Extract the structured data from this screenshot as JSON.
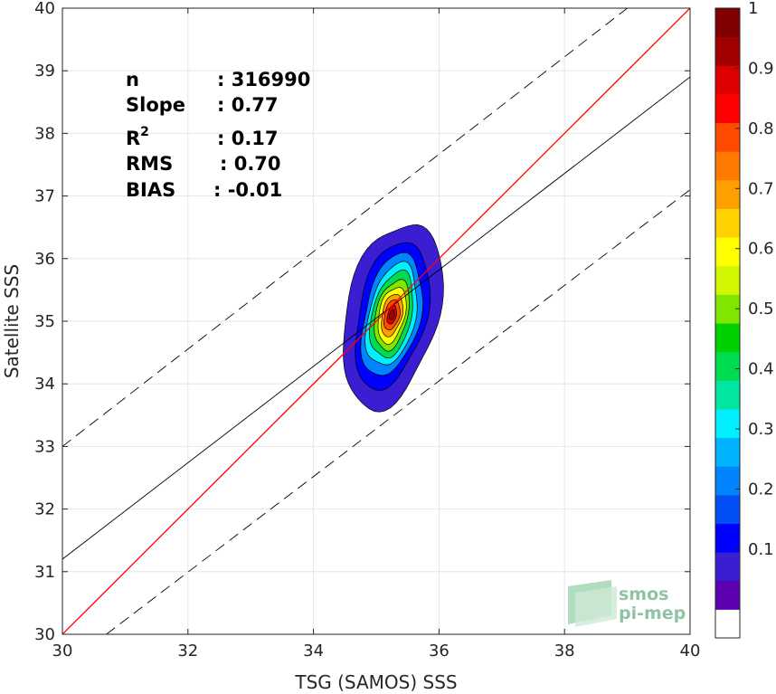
{
  "chart_data": {
    "type": "heatmap",
    "subtype": "density-contour scatter",
    "xlabel": "TSG (SAMOS) SSS",
    "ylabel": "Satellite SSS",
    "xlim": [
      30,
      40
    ],
    "ylim": [
      30,
      40
    ],
    "x_ticks": [
      "30",
      "32",
      "34",
      "36",
      "38",
      "40"
    ],
    "y_ticks": [
      "30",
      "31",
      "32",
      "33",
      "34",
      "35",
      "36",
      "37",
      "38",
      "39",
      "40"
    ],
    "grid": true,
    "stats": [
      {
        "key": "n",
        "value": ": 316990"
      },
      {
        "key": "Slope",
        "value": ": 0.77"
      },
      {
        "key": "R",
        "sup": "2",
        "value": ": 0.17"
      },
      {
        "key": "RMS",
        "value": ": 0.70"
      },
      {
        "key": "BIAS",
        "value": ": -0.01"
      }
    ],
    "lines": {
      "one_to_one": {
        "x": [
          30,
          40
        ],
        "y": [
          30,
          40
        ],
        "color": "#ff0000"
      },
      "regression": {
        "x": [
          30,
          40
        ],
        "y": [
          31.2,
          38.9
        ],
        "color": "#000000"
      },
      "upper_bound": {
        "x": [
          30,
          39.0
        ],
        "y": [
          33.0,
          40.0
        ],
        "color": "#000000",
        "style": "dashed"
      },
      "lower_bound": {
        "x": [
          30.7,
          40
        ],
        "y": [
          30.0,
          37.1
        ],
        "color": "#000000",
        "style": "dashed"
      }
    },
    "density_center": {
      "x": 35.25,
      "y": 35.1
    },
    "density_contours": [
      {
        "level": 0.05,
        "rx": 0.75,
        "ry": 1.48
      },
      {
        "level": 0.1,
        "rx": 0.55,
        "ry": 1.18
      },
      {
        "level": 0.2,
        "rx": 0.45,
        "ry": 0.98
      },
      {
        "level": 0.3,
        "rx": 0.38,
        "ry": 0.82
      },
      {
        "level": 0.4,
        "rx": 0.32,
        "ry": 0.69
      },
      {
        "level": 0.5,
        "rx": 0.26,
        "ry": 0.56
      },
      {
        "level": 0.6,
        "rx": 0.21,
        "ry": 0.45
      },
      {
        "level": 0.7,
        "rx": 0.16,
        "ry": 0.34
      },
      {
        "level": 0.8,
        "rx": 0.12,
        "ry": 0.24
      },
      {
        "level": 0.9,
        "rx": 0.07,
        "ry": 0.15
      },
      {
        "level": 0.95,
        "rx": 0.04,
        "ry": 0.08
      }
    ],
    "colorbar": {
      "range": [
        0,
        1
      ],
      "ticks": [
        "0.1",
        "0.2",
        "0.3",
        "0.4",
        "0.5",
        "0.6",
        "0.7",
        "0.8",
        "0.9",
        "1"
      ],
      "colors": [
        "#ffffff",
        "#5c00b0",
        "#3c1ed2",
        "#0000ff",
        "#0050f5",
        "#0085ff",
        "#00b3ff",
        "#00f0ff",
        "#00e6a0",
        "#00dc50",
        "#00d200",
        "#80e600",
        "#d2f500",
        "#ffff00",
        "#ffd200",
        "#ffa000",
        "#ff7800",
        "#ff4b00",
        "#ff0000",
        "#dc0000",
        "#a00000",
        "#800000"
      ]
    },
    "logo": {
      "line1": "smos",
      "line2": "pi-mep"
    }
  }
}
